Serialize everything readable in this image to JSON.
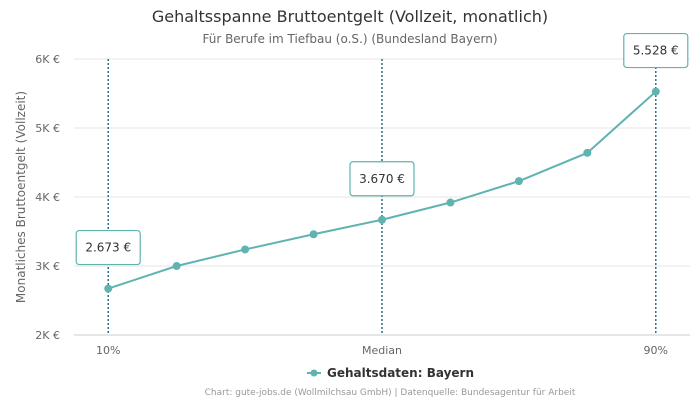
{
  "chart_data": {
    "type": "line",
    "title": "Gehaltsspanne Bruttoentgelt (Vollzeit, monatlich)",
    "subtitle": "Für Berufe im Tiefbau (o.S.) (Bundesland Bayern)",
    "ylabel": "Monatliches Bruttoentgelt (Vollzeit)",
    "xlabel": "",
    "ylim": [
      2000,
      6000
    ],
    "yticks": [
      2000,
      3000,
      4000,
      5000,
      6000
    ],
    "ytick_labels": [
      "2K €",
      "3K €",
      "4K €",
      "5K €",
      "6K €"
    ],
    "x": [
      1,
      2,
      3,
      4,
      5,
      6,
      7,
      8,
      9
    ],
    "xlim": [
      0.5,
      9.5
    ],
    "xtick_positions": [
      1,
      5,
      9
    ],
    "xtick_labels": [
      "10%",
      "Median",
      "90%"
    ],
    "series": [
      {
        "name": "Gehaltsdaten: Bayern",
        "color": "#5fb3b0",
        "values": [
          2673,
          3000,
          3240,
          3460,
          3670,
          3920,
          4230,
          4640,
          5528
        ]
      }
    ],
    "markers": [
      {
        "x": 1,
        "label": "2.673 €",
        "value": 2673
      },
      {
        "x": 5,
        "label": "3.670 €",
        "value": 3670
      },
      {
        "x": 9,
        "label": "5.528 €",
        "value": 5528
      }
    ],
    "marker_color": "#2a6f8a",
    "grid": true,
    "legend": "bottom-center",
    "credits": "Chart: gute-jobs.de (Wollmilchsau GmbH) | Datenquelle: Bundesagentur für Arbeit"
  }
}
